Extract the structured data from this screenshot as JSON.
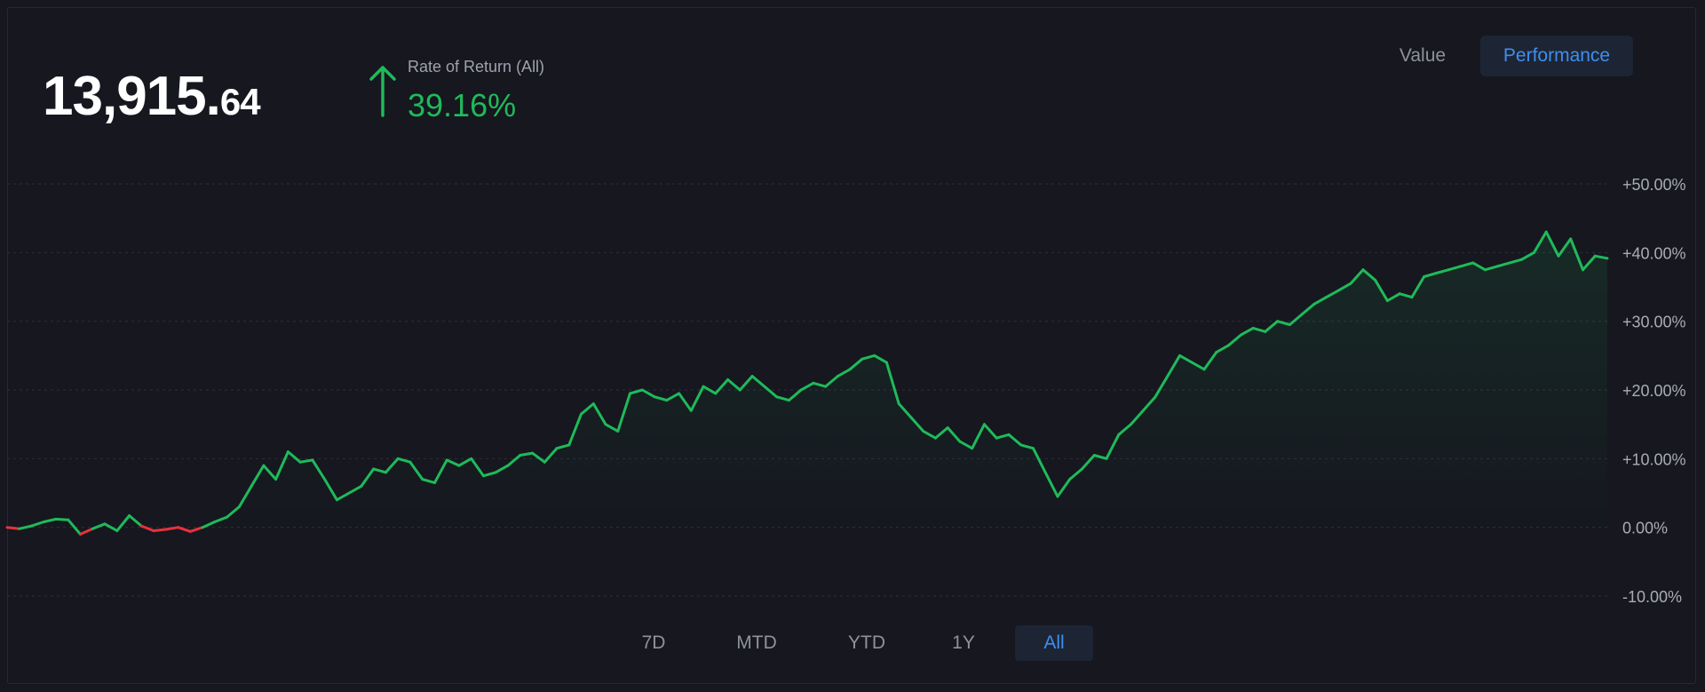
{
  "header": {
    "portfolio_value_main": "13,915.",
    "portfolio_value_cents": "64",
    "rate_label": "Rate of Return (All)",
    "rate_value": "39.16%",
    "rate_direction": "up-arrow-icon"
  },
  "view_toggle": {
    "value_label": "Value",
    "performance_label": "Performance",
    "active": "Performance"
  },
  "range_buttons": {
    "items": [
      "7D",
      "MTD",
      "YTD",
      "1Y",
      "All"
    ],
    "active": "All"
  },
  "colors": {
    "positive": "#1fba5a",
    "negative": "#e6323e",
    "accent": "#3f8ef0",
    "background": "#16171f"
  },
  "chart_data": {
    "type": "area",
    "series": [
      {
        "name": "",
        "values": [
          0,
          -0.2,
          0.2,
          0.8,
          1.2,
          1.1,
          -1.0,
          -0.2,
          0.5,
          -0.5,
          1.7,
          0.2,
          -0.5,
          -0.3,
          0.0,
          -0.6,
          0.0,
          0.8,
          1.5,
          3.0,
          6.0,
          9.0,
          7.0,
          11.0,
          9.5,
          9.8,
          7.0,
          4.0,
          5.0,
          6.0,
          8.5,
          8.0,
          10.0,
          9.5,
          7.0,
          6.5,
          9.8,
          9.0,
          10.0,
          7.5,
          8.0,
          9.0,
          10.5,
          10.8,
          9.5,
          11.5,
          12.0,
          16.5,
          18.0,
          15.0,
          14.0,
          19.5,
          20.0,
          19.0,
          18.5,
          19.5,
          17.0,
          20.5,
          19.5,
          21.5,
          20.0,
          22.0,
          20.5,
          19.0,
          18.5,
          20.0,
          21.0,
          20.5,
          22.0,
          23.0,
          24.5,
          25.0,
          24.0,
          18.0,
          16.0,
          14.0,
          13.0,
          14.5,
          12.5,
          11.5,
          15.0,
          13.0,
          13.5,
          12.0,
          11.5,
          8.0,
          4.5,
          7.0,
          8.5,
          10.5,
          10.0,
          13.5,
          15.0,
          17.0,
          19.0,
          22.0,
          25.0,
          24.0,
          23.0,
          25.5,
          26.5,
          28.0,
          29.0,
          28.5,
          30.0,
          29.5,
          31.0,
          32.5,
          33.5,
          34.5,
          35.5,
          37.5,
          36.0,
          33.0,
          34.0,
          33.5,
          36.5,
          37.0,
          37.5,
          38.0,
          38.5,
          37.5,
          38.0,
          38.5,
          39.0,
          40.0,
          43.0,
          39.5,
          42.0,
          37.5,
          39.5,
          39.16
        ]
      }
    ],
    "x_labels": [],
    "y_ticks": [
      "+50.00%",
      "+40.00%",
      "+30.00%",
      "+20.00%",
      "+10.00%",
      "0.00%",
      "-10.00%"
    ],
    "y_tick_values": [
      50,
      40,
      30,
      20,
      10,
      0,
      -10
    ],
    "ylim": [
      -10,
      50
    ],
    "grid": true,
    "title": "",
    "xlabel": "",
    "ylabel": ""
  }
}
